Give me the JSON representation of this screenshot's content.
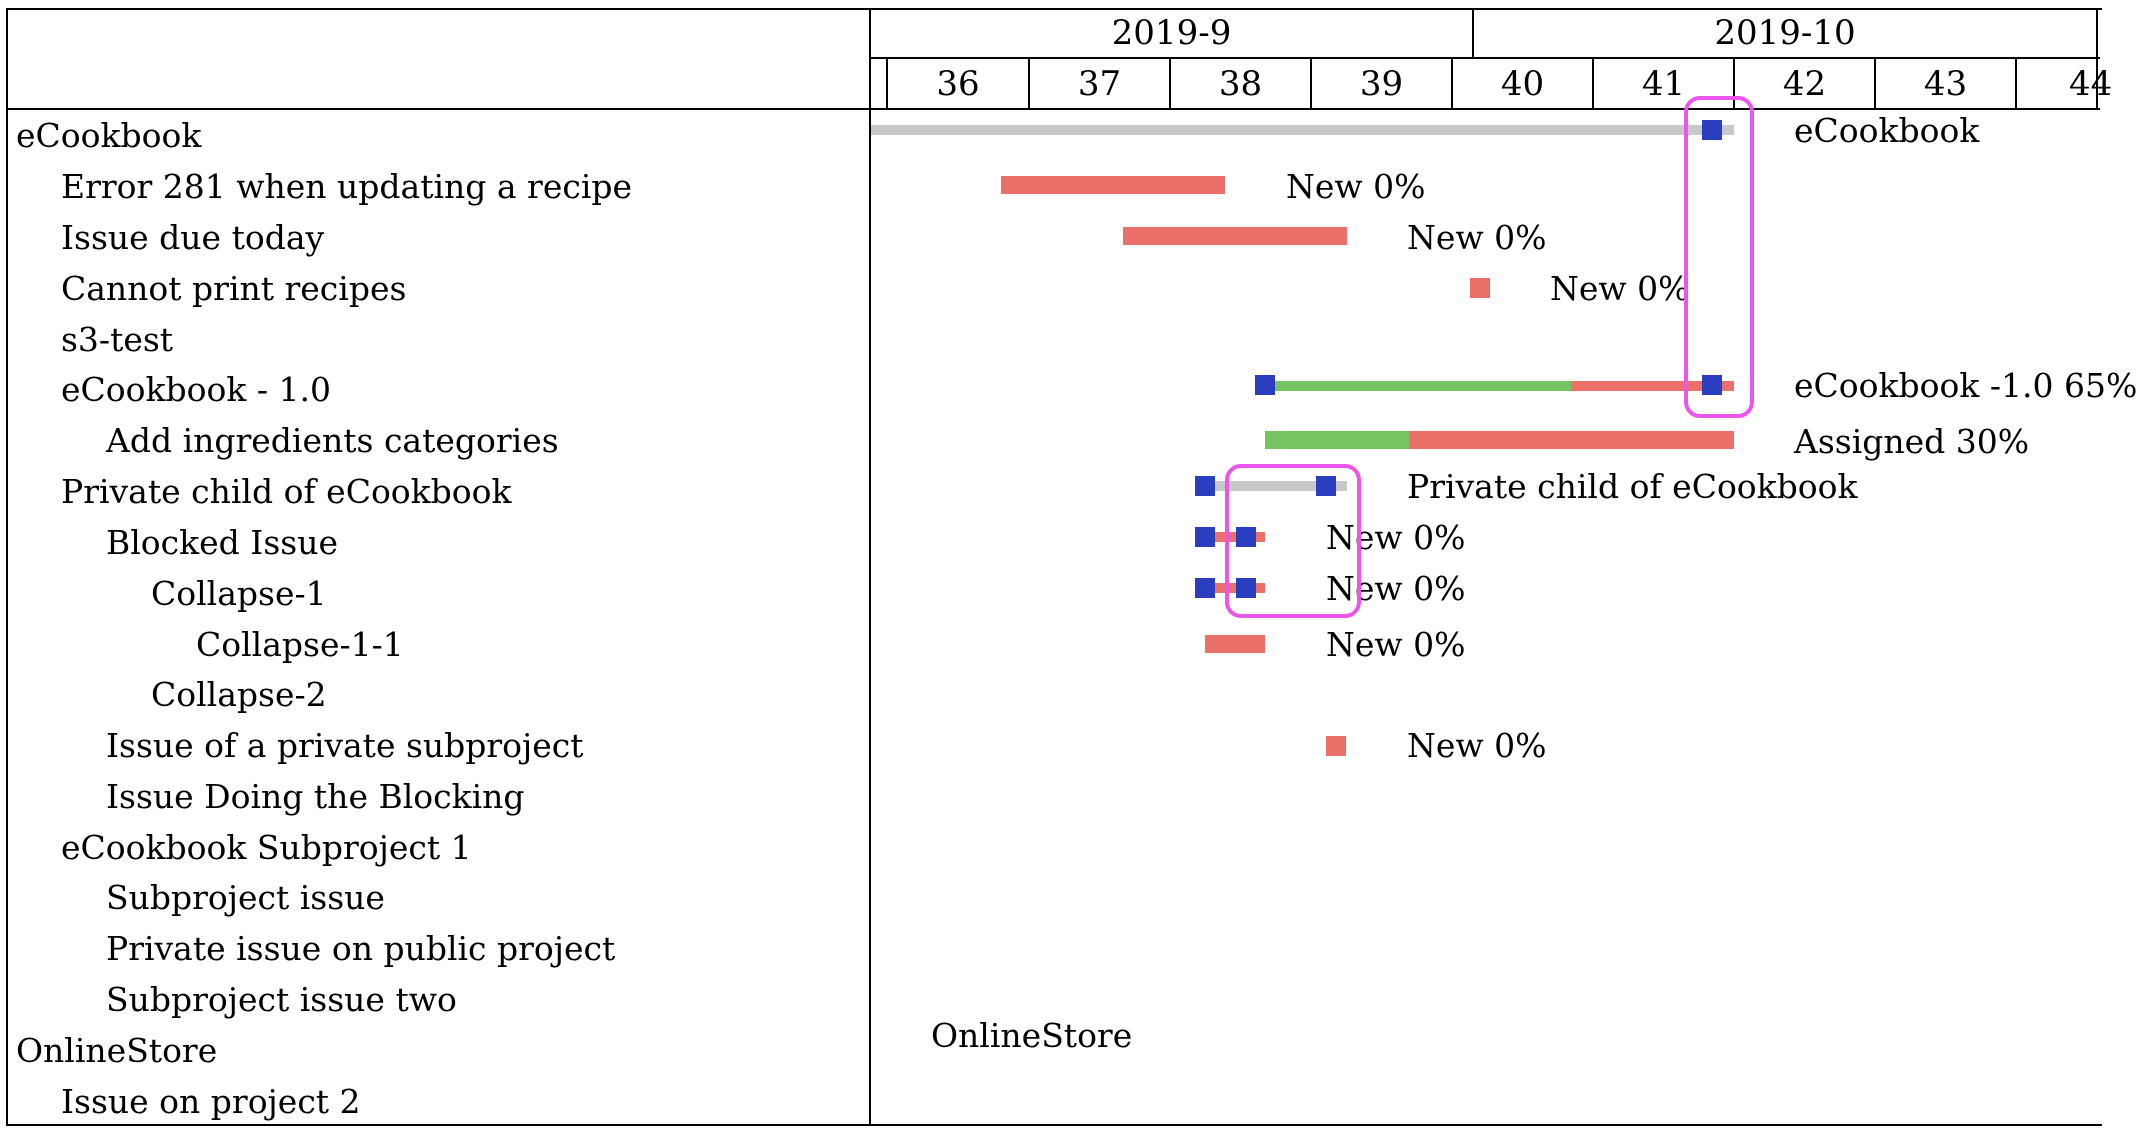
{
  "gantt": {
    "months": [
      "2019-9",
      "2019-10"
    ],
    "weeks": [
      "36",
      "37",
      "38",
      "39",
      "40",
      "41",
      "42",
      "43",
      "44"
    ],
    "rows": [
      {
        "label": "eCookbook",
        "indent": 0
      },
      {
        "label": "Error 281 when updating a recipe",
        "indent": 1
      },
      {
        "label": "Issue due today",
        "indent": 1
      },
      {
        "label": "Cannot print recipes",
        "indent": 1
      },
      {
        "label": "s3-test",
        "indent": 1
      },
      {
        "label": "eCookbook - 1.0",
        "indent": 1
      },
      {
        "label": "Add ingredients categories",
        "indent": 2
      },
      {
        "label": "Private child of eCookbook",
        "indent": 1
      },
      {
        "label": "Blocked Issue",
        "indent": 2
      },
      {
        "label": "Collapse-1",
        "indent": 3
      },
      {
        "label": "Collapse-1-1",
        "indent": 4
      },
      {
        "label": "Collapse-2",
        "indent": 3
      },
      {
        "label": "Issue of a private subproject",
        "indent": 2
      },
      {
        "label": "Issue Doing the Blocking",
        "indent": 2
      },
      {
        "label": "eCookbook Subproject 1",
        "indent": 1
      },
      {
        "label": "Subproject issue",
        "indent": 2
      },
      {
        "label": "Private issue on public project",
        "indent": 2
      },
      {
        "label": "Subproject issue two",
        "indent": 2
      },
      {
        "label": "OnlineStore",
        "indent": 0
      },
      {
        "label": "Issue on project 2",
        "indent": 1
      }
    ],
    "bar_labels": {
      "ecookbook": "eCookbook",
      "error281": "New 0%",
      "due_today": "New 0%",
      "cannot_print": "New 0%",
      "version": "eCookbook -1.0 65%",
      "add_ingredients": "Assigned 30%",
      "private_child": "Private child of eCookbook",
      "blocked": "New 0%",
      "collapse1": "New 0%",
      "collapse11": "New 0%",
      "private_subproject": "New 0%",
      "onlinestore": "OnlineStore"
    },
    "colors": {
      "project_bar": "#c8c8c8",
      "todo": "#ec706a",
      "done": "#77c465",
      "marker": "#2c3ec0",
      "highlight": "#ea55ea"
    }
  }
}
